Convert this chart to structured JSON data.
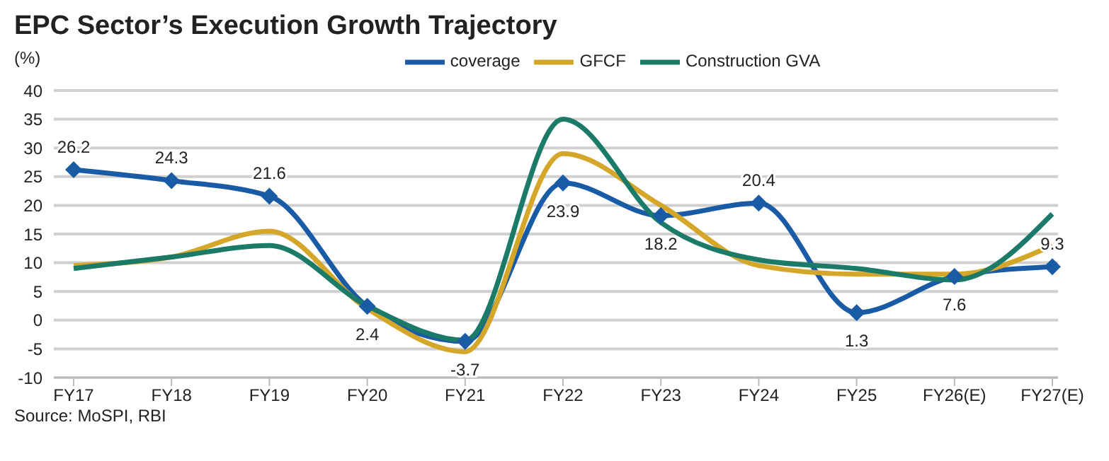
{
  "chart_data": {
    "type": "line",
    "title": "EPC Sector’s Execution Growth Trajectory",
    "ylabel": "(%)",
    "categories": [
      "FY17",
      "FY18",
      "FY19",
      "FY20",
      "FY21",
      "FY22",
      "FY23",
      "FY24",
      "FY25",
      "FY26(E)",
      "FY27(E)"
    ],
    "series": [
      {
        "name": "coverage",
        "color": "#1a5ba6",
        "marker": "diamond",
        "values": [
          26.2,
          24.3,
          21.6,
          2.4,
          -3.7,
          23.9,
          18.2,
          20.4,
          1.3,
          7.6,
          9.3
        ],
        "value_labels": [
          "26.2",
          "24.3",
          "21.6",
          "2.4",
          "-3.7",
          "23.9",
          "18.2",
          "20.4",
          "1.3",
          "7.6",
          "9.3"
        ]
      },
      {
        "name": "GFCF",
        "color": "#d4a62a",
        "values": [
          9.5,
          11,
          15.5,
          2,
          -5.5,
          29,
          20,
          9.5,
          8,
          8,
          13
        ]
      },
      {
        "name": "Construction GVA",
        "color": "#1b7b68",
        "values": [
          9,
          11,
          13,
          2.5,
          -3.5,
          35,
          17,
          10.5,
          9,
          7,
          18.5
        ]
      }
    ],
    "ylim": [
      -10,
      40
    ],
    "yticks": [
      -10,
      -5,
      0,
      5,
      10,
      15,
      20,
      25,
      30,
      35,
      40
    ],
    "grid": "y",
    "legend": "top",
    "annotations": [
      "Source: MoSPI, RBI"
    ]
  }
}
